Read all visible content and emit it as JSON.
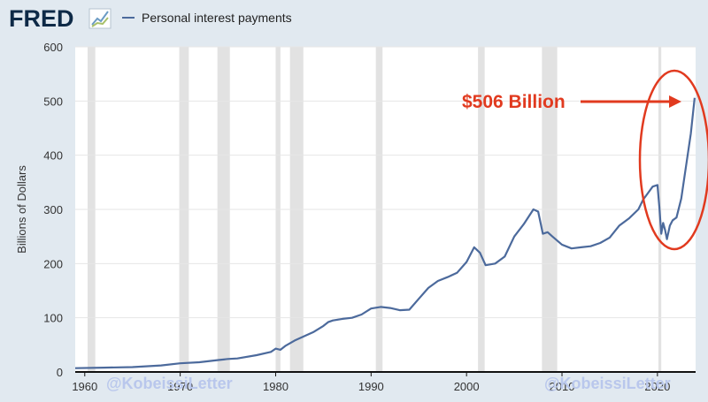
{
  "logo": {
    "text": "FRED",
    "icon": "chart-line-icon"
  },
  "chart_data": {
    "type": "line",
    "title": "",
    "ylabel": "Billions of Dollars",
    "xlim": [
      1959,
      2024
    ],
    "ylim": [
      0,
      600
    ],
    "yticks": [
      0,
      100,
      200,
      300,
      400,
      500,
      600
    ],
    "xticks": [
      1960,
      1970,
      1980,
      1990,
      2000,
      2010,
      2020
    ],
    "legend": {
      "position": "top-left",
      "entries": [
        "Personal interest payments"
      ]
    },
    "grid": true,
    "recessions": [
      [
        1960.3,
        1961.1
      ],
      [
        1969.9,
        1970.9
      ],
      [
        1973.9,
        1975.2
      ],
      [
        1980.0,
        1980.5
      ],
      [
        1981.5,
        1982.9
      ],
      [
        1990.5,
        1991.2
      ],
      [
        2001.2,
        2001.9
      ],
      [
        2007.9,
        2009.5
      ],
      [
        2020.1,
        2020.4
      ]
    ],
    "series": [
      {
        "name": "Personal interest payments",
        "color": "#4c6a9c",
        "x": [
          1959,
          1962,
          1965,
          1968,
          1970,
          1972,
          1974,
          1975,
          1976,
          1978,
          1979.5,
          1980,
          1980.5,
          1981,
          1982,
          1983,
          1984,
          1985,
          1985.5,
          1986,
          1987,
          1988,
          1989,
          1990,
          1991,
          1992,
          1993,
          1994,
          1995,
          1996,
          1997,
          1998,
          1999,
          2000,
          2000.8,
          2001.4,
          2002,
          2003,
          2004,
          2005,
          2006,
          2007,
          2007.5,
          2008,
          2008.5,
          2009,
          2010,
          2011,
          2012,
          2013,
          2014,
          2015,
          2016,
          2017,
          2018,
          2018.5,
          2019,
          2019.5,
          2020,
          2020.2,
          2020.4,
          2020.6,
          2020.8,
          2021,
          2021.3,
          2021.6,
          2022,
          2022.5,
          2023,
          2023.5,
          2023.9
        ],
        "values": [
          7,
          8,
          9,
          12,
          16,
          18,
          22,
          24,
          25,
          31,
          37,
          43,
          41,
          48,
          58,
          66,
          74,
          85,
          92,
          95,
          98,
          100,
          106,
          117,
          120,
          118,
          114,
          115,
          135,
          155,
          168,
          175,
          183,
          203,
          230,
          220,
          197,
          200,
          213,
          250,
          273,
          300,
          296,
          255,
          258,
          250,
          235,
          228,
          230,
          232,
          238,
          248,
          270,
          283,
          300,
          318,
          330,
          342,
          345,
          305,
          255,
          275,
          262,
          245,
          270,
          280,
          285,
          320,
          380,
          440,
          506
        ]
      }
    ],
    "annotations": [
      {
        "text": "$506 Billion",
        "color": "#e13a1f",
        "arrow_to": [
          2023.9,
          506
        ]
      }
    ]
  },
  "watermark": "@KobeissiLetter"
}
